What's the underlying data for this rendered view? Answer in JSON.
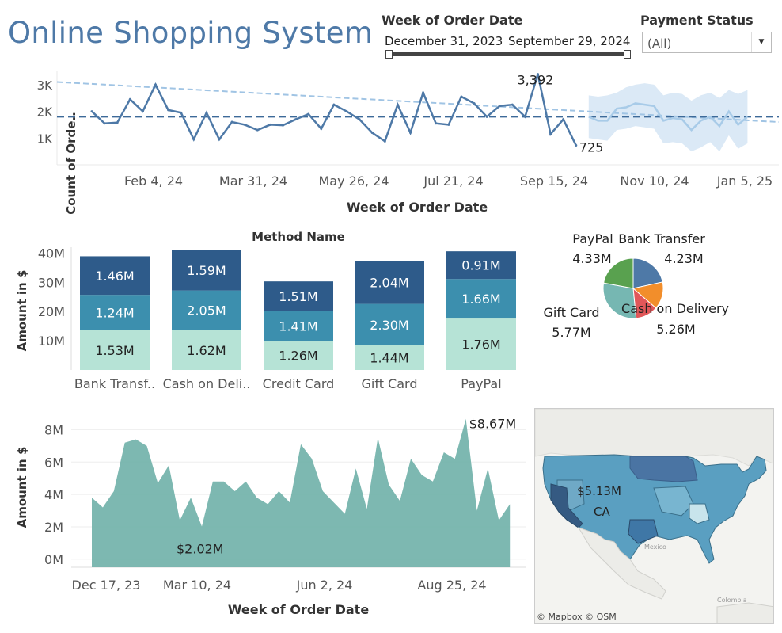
{
  "header": {
    "title": "Online Shopping System",
    "week_filter": {
      "label": "Week of Order Date",
      "start": "December 31, 2023",
      "end": "September 29, 2024"
    },
    "payment_filter": {
      "label": "Payment Status",
      "value": "(All)"
    }
  },
  "colors": {
    "line": "#4e79a7",
    "trend": "#a0c4e4",
    "forecast": "#a8cbe8",
    "forecast_band": "#dbe9f6",
    "stack_dark": "#2e5b8a",
    "stack_mid": "#3c8fae",
    "stack_light": "#b6e3d6",
    "area": "#6fb0a8",
    "pie_blue": "#4e79a7",
    "pie_orange": "#f28e2b",
    "pie_red": "#e15759",
    "pie_teal": "#76b7b2",
    "pie_green": "#59a14f"
  },
  "chart_data": [
    {
      "type": "line",
      "ylabel": "Count of Orde..",
      "xlabel": "Week of Order Date",
      "ytick_labels": [
        "1K",
        "2K",
        "3K"
      ],
      "xtick_labels": [
        "Feb 4, 24",
        "Mar 31, 24",
        "May 26, 24",
        "Jul 21, 24",
        "Sep 15, 24",
        "Nov 10, 24",
        "Jan 5, 25"
      ],
      "ylim": [
        0,
        3500
      ],
      "values": [
        2000,
        1550,
        1580,
        2450,
        2000,
        3000,
        2050,
        1950,
        950,
        1950,
        950,
        1600,
        1500,
        1300,
        1500,
        1480,
        1700,
        1900,
        1350,
        2250,
        2000,
        1700,
        1200,
        880,
        2250,
        1200,
        2700,
        1550,
        1500,
        2550,
        2300,
        1800,
        2200,
        2250,
        1800,
        3392,
        1150,
        1700,
        725
      ],
      "forecast_values": [
        1800,
        1650,
        1650,
        2100,
        2150,
        2300,
        2250,
        2200,
        1650,
        1750,
        1700,
        1300,
        1650,
        1800,
        1450,
        2000,
        1500,
        1800
      ],
      "forecast_upper": [
        2600,
        2550,
        2600,
        2700,
        2900,
        3000,
        3050,
        3000,
        2600,
        2700,
        2650,
        2400,
        2600,
        2700,
        2500,
        2800,
        2650,
        2800
      ],
      "forecast_lower": [
        1000,
        950,
        900,
        1300,
        1350,
        1450,
        1400,
        1350,
        800,
        850,
        800,
        500,
        650,
        850,
        500,
        1100,
        600,
        800
      ],
      "trend_start": 3100,
      "trend_end": 1600,
      "reference_line": 1800,
      "annotations": [
        {
          "label": "3,392",
          "index": 35
        },
        {
          "label": "725",
          "index": 38
        }
      ]
    },
    {
      "type": "bar",
      "title": "Method Name",
      "ylabel": "Amount in $",
      "ylim": [
        0,
        42
      ],
      "ytick_labels": [
        "10M",
        "20M",
        "30M",
        "40M"
      ],
      "categories": [
        "Bank Transf..",
        "Cash on Deli..",
        "Credit Card",
        "Gift Card",
        "PayPal"
      ],
      "series": [
        {
          "values": [
            1.53,
            1.62,
            1.26,
            1.44,
            1.76
          ],
          "labels": [
            "1.53M",
            "1.62M",
            "1.26M",
            "1.44M",
            "1.76M"
          ],
          "heights": [
            13.6,
            13.6,
            10.0,
            8.4,
            17.6
          ]
        },
        {
          "values": [
            1.24,
            2.05,
            1.41,
            2.3,
            1.66
          ],
          "labels": [
            "1.24M",
            "2.05M",
            "1.41M",
            "2.30M",
            "1.66M"
          ],
          "heights": [
            12.1,
            13.6,
            10.1,
            14.2,
            13.5
          ]
        },
        {
          "values": [
            1.46,
            1.59,
            1.51,
            2.04,
            0.91
          ],
          "labels": [
            "1.46M",
            "1.59M",
            "1.51M",
            "2.04M",
            "0.91M"
          ],
          "heights": [
            13.2,
            13.9,
            10.2,
            14.6,
            9.5
          ]
        }
      ]
    },
    {
      "type": "pie",
      "slices": [
        {
          "name": "Bank Transfer",
          "value": 4.23,
          "label": "4.23M"
        },
        {
          "name": "Cash on Delivery",
          "value": 5.26,
          "label": "5.26M"
        },
        {
          "name": "Gift Card",
          "value": 5.77,
          "label": "5.77M"
        },
        {
          "name": "PayPal",
          "value": 4.33,
          "label": "4.33M"
        }
      ]
    },
    {
      "type": "area",
      "ylabel": "Amount in $",
      "xlabel": "Week of Order Date",
      "ylim": [
        -0.5,
        9
      ],
      "ytick_labels": [
        "0M",
        "2M",
        "4M",
        "6M",
        "8M"
      ],
      "xtick_labels": [
        "Dec 17, 23",
        "Mar 10, 24",
        "Jun 2, 24",
        "Aug 25, 24"
      ],
      "values": [
        3.8,
        3.2,
        4.2,
        7.2,
        7.4,
        7.0,
        4.7,
        5.8,
        2.4,
        3.8,
        2.02,
        4.8,
        4.8,
        4.2,
        4.8,
        3.8,
        3.4,
        4.2,
        3.5,
        7.1,
        6.2,
        4.2,
        3.5,
        2.8,
        5.6,
        3.1,
        7.5,
        4.6,
        3.6,
        6.2,
        5.2,
        4.8,
        6.6,
        6.2,
        8.67,
        3.0,
        5.6,
        2.4,
        3.4
      ],
      "annotations": [
        {
          "label": "$8.67M",
          "index": 34
        },
        {
          "label": "$2.02M",
          "index": 10
        }
      ]
    }
  ],
  "map": {
    "region_label": "CA",
    "value_label": "$5.13M",
    "country_label": "Mexico",
    "country2_label": "Colombia",
    "attribution": "© Mapbox © OSM"
  }
}
